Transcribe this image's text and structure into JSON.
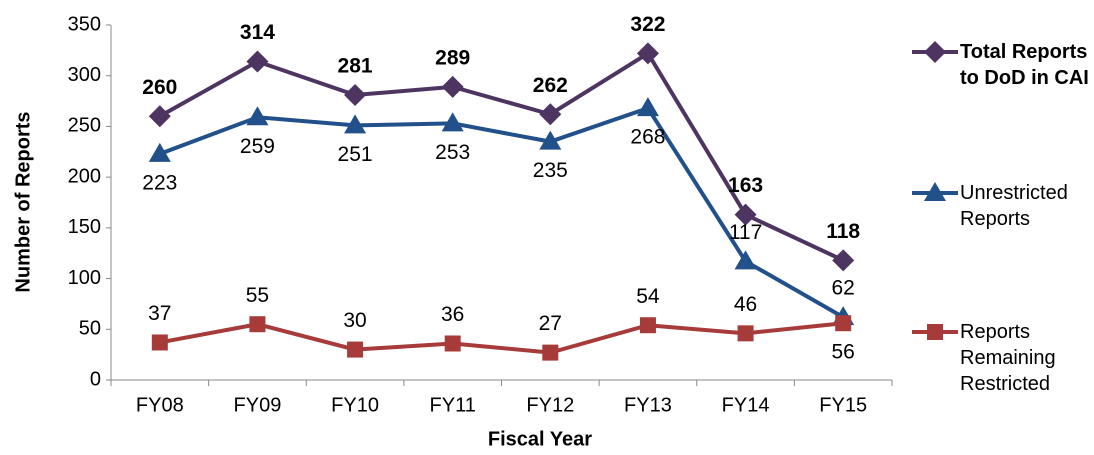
{
  "chart_data": {
    "type": "line",
    "x_label": "Fiscal Year",
    "y_label": "Number of Reports",
    "categories": [
      "FY08",
      "FY09",
      "FY10",
      "FY11",
      "FY12",
      "FY13",
      "FY14",
      "FY15"
    ],
    "series": [
      {
        "name": "Total Reports to DoD in CAI",
        "color": "#4e3461",
        "marker": "diamond",
        "values": [
          260,
          314,
          281,
          289,
          262,
          322,
          163,
          118
        ]
      },
      {
        "name": "Unrestricted Reports",
        "color": "#22508a",
        "marker": "triangle",
        "values": [
          223,
          259,
          251,
          253,
          235,
          268,
          117,
          62
        ]
      },
      {
        "name": "Reports Remaining Restricted",
        "color": "#a63b3a",
        "marker": "square",
        "values": [
          37,
          55,
          30,
          36,
          27,
          54,
          46,
          56
        ]
      }
    ],
    "ylim": [
      0,
      350
    ],
    "yticks": [
      0,
      50,
      100,
      150,
      200,
      250,
      300,
      350
    ],
    "grid": false,
    "legend": "right"
  }
}
